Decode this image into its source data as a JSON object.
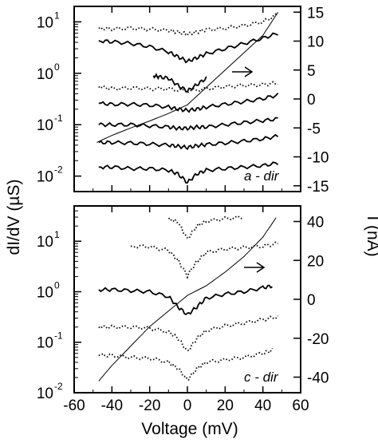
{
  "chart_data": [
    {
      "type": "line",
      "panel": "upper",
      "annotation": "a - dir",
      "x_range": [
        -60,
        60
      ],
      "left_axis": {
        "label": "dI/dV (µS)",
        "scale": "log",
        "range": [
          0.005,
          20
        ],
        "ticks": [
          {
            "value": 10,
            "base": "10",
            "exp": "1"
          },
          {
            "value": 1,
            "base": "10",
            "exp": "0"
          },
          {
            "value": 0.1,
            "base": "10",
            "exp": "-1"
          },
          {
            "value": 0.01,
            "base": "10",
            "exp": "-2"
          }
        ]
      },
      "right_axis": {
        "label": "I (nA)",
        "scale": "linear",
        "range": [
          -16,
          16
        ],
        "ticks": [
          "15",
          "10",
          "5",
          "0",
          "-5",
          "-10",
          "-15"
        ]
      },
      "series": [
        {
          "axis": "left",
          "style": "dotted",
          "x": [
            -47,
            -40,
            -30,
            -20,
            -10,
            -5,
            0,
            5,
            10,
            20,
            30,
            40,
            48
          ],
          "y": [
            7.5,
            7.3,
            7.5,
            7.2,
            6.8,
            6.3,
            5.8,
            6.4,
            7.0,
            7.5,
            8.5,
            10,
            14
          ]
        },
        {
          "axis": "left",
          "style": "solid",
          "x": [
            -47,
            -40,
            -30,
            -20,
            -10,
            -5,
            0,
            5,
            10,
            20,
            30,
            40,
            48
          ],
          "y": [
            4.3,
            4.1,
            3.8,
            3.3,
            2.6,
            2.1,
            1.7,
            2.0,
            2.4,
            3.0,
            3.8,
            4.8,
            6.0
          ]
        },
        {
          "axis": "left",
          "style": "solid",
          "x": [
            -18,
            -15,
            -10,
            -5,
            0,
            5,
            10
          ],
          "y": [
            0.9,
            0.85,
            0.8,
            0.58,
            0.45,
            0.6,
            0.8
          ]
        },
        {
          "axis": "left",
          "style": "dotted",
          "x": [
            -47,
            -40,
            -30,
            -20,
            -10,
            0,
            10,
            20,
            30,
            40,
            48
          ],
          "y": [
            0.55,
            0.5,
            0.52,
            0.5,
            0.5,
            0.45,
            0.5,
            0.55,
            0.58,
            0.6,
            0.65
          ]
        },
        {
          "axis": "left",
          "style": "solid",
          "x": [
            -47,
            -40,
            -30,
            -20,
            -10,
            -5,
            0,
            5,
            10,
            20,
            30,
            40,
            48
          ],
          "y": [
            0.26,
            0.25,
            0.25,
            0.24,
            0.22,
            0.2,
            0.19,
            0.2,
            0.22,
            0.25,
            0.28,
            0.32,
            0.38
          ]
        },
        {
          "axis": "left",
          "style": "solid",
          "x": [
            -47,
            -40,
            -30,
            -20,
            -10,
            -5,
            0,
            5,
            10,
            20,
            30,
            40,
            48
          ],
          "y": [
            0.1,
            0.1,
            0.1,
            0.095,
            0.09,
            0.085,
            0.085,
            0.09,
            0.09,
            0.1,
            0.11,
            0.12,
            0.13
          ]
        },
        {
          "axis": "left",
          "style": "solid",
          "x": [
            -47,
            -40,
            -30,
            -20,
            -10,
            -5,
            0,
            5,
            10,
            20,
            30,
            40,
            48
          ],
          "y": [
            0.045,
            0.045,
            0.044,
            0.042,
            0.04,
            0.038,
            0.036,
            0.039,
            0.041,
            0.044,
            0.048,
            0.053,
            0.06
          ]
        },
        {
          "axis": "left",
          "style": "solid",
          "x": [
            -47,
            -40,
            -30,
            -20,
            -10,
            -5,
            0,
            5,
            10,
            20,
            30,
            40,
            48
          ],
          "y": [
            0.015,
            0.015,
            0.014,
            0.014,
            0.013,
            0.011,
            0.0075,
            0.011,
            0.013,
            0.014,
            0.015,
            0.016,
            0.018
          ]
        },
        {
          "axis": "right",
          "style": "solid-thin",
          "x": [
            -48,
            -40,
            -30,
            -20,
            -10,
            0,
            10,
            20,
            30,
            40,
            48
          ],
          "y": [
            -7.5,
            -6.3,
            -5,
            -3.8,
            -2.5,
            -1,
            2,
            5,
            8,
            11,
            15
          ]
        }
      ],
      "arrow": {
        "direction": "right",
        "points_to": "right_axis"
      }
    },
    {
      "type": "line",
      "panel": "lower",
      "annotation": "c - dir",
      "x_range": [
        -60,
        60
      ],
      "x_axis": {
        "label": "Voltage (mV)",
        "ticks": [
          "-60",
          "-40",
          "-20",
          "0",
          "20",
          "40",
          "60"
        ]
      },
      "left_axis": {
        "label": "dI/dV (µS)",
        "scale": "log",
        "range": [
          0.01,
          50
        ],
        "ticks": [
          {
            "value": 10,
            "base": "10",
            "exp": "1"
          },
          {
            "value": 1,
            "base": "10",
            "exp": "0"
          },
          {
            "value": 0.1,
            "base": "10",
            "exp": "-1"
          },
          {
            "value": 0.01,
            "base": "10",
            "exp": "-2"
          }
        ]
      },
      "right_axis": {
        "label": "I (nA)",
        "scale": "linear",
        "range": [
          -48,
          48
        ],
        "ticks": [
          "40",
          "20",
          "0",
          "-20",
          "-40"
        ]
      },
      "series": [
        {
          "axis": "left",
          "style": "dotted",
          "x": [
            -10,
            -5,
            0,
            5,
            10,
            20,
            30
          ],
          "y": [
            28,
            24,
            11,
            20,
            25,
            28,
            30
          ]
        },
        {
          "axis": "left",
          "style": "dotted",
          "x": [
            -30,
            -20,
            -10,
            -5,
            0,
            5,
            10,
            20,
            30,
            40,
            48
          ],
          "y": [
            8,
            7.8,
            6.5,
            4.2,
            2.1,
            4,
            6,
            7,
            7.5,
            8,
            9
          ]
        },
        {
          "axis": "left",
          "style": "solid",
          "x": [
            -47,
            -40,
            -30,
            -20,
            -10,
            -5,
            0,
            5,
            10,
            20,
            30,
            40,
            45
          ],
          "y": [
            1.1,
            1.1,
            1.05,
            1.0,
            0.8,
            0.5,
            0.35,
            0.5,
            0.75,
            0.9,
            1.0,
            1.2,
            1.3
          ]
        },
        {
          "axis": "left",
          "style": "dotted",
          "x": [
            -47,
            -40,
            -30,
            -20,
            -10,
            -5,
            0,
            5,
            10,
            20,
            30,
            40,
            48
          ],
          "y": [
            0.2,
            0.2,
            0.2,
            0.19,
            0.16,
            0.12,
            0.065,
            0.12,
            0.17,
            0.21,
            0.24,
            0.28,
            0.32
          ]
        },
        {
          "axis": "left",
          "style": "dotted",
          "x": [
            -47,
            -40,
            -30,
            -20,
            -10,
            -5,
            0,
            5,
            10,
            20,
            30,
            40,
            45
          ],
          "y": [
            0.055,
            0.055,
            0.05,
            0.048,
            0.04,
            0.03,
            0.018,
            0.03,
            0.04,
            0.045,
            0.05,
            0.06,
            0.07
          ]
        },
        {
          "axis": "right",
          "style": "solid-thin",
          "x": [
            -47,
            -40,
            -30,
            -20,
            -10,
            0,
            10,
            20,
            30,
            40,
            47
          ],
          "y": [
            -42,
            -34,
            -24,
            -14,
            -6,
            2,
            7,
            14,
            22,
            32,
            42
          ]
        }
      ],
      "arrow": {
        "direction": "right",
        "points_to": "right_axis"
      }
    }
  ]
}
